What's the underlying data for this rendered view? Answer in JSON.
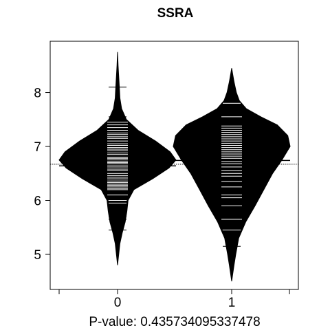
{
  "chart_data": {
    "type": "beanplot",
    "title": "SSRA",
    "xlabel": "P-value: 0.435734095337478",
    "ylabel": "",
    "categories": [
      "0",
      "1"
    ],
    "x_ticks": [
      "0",
      "1"
    ],
    "y_ticks": [
      5,
      6,
      7,
      8
    ],
    "ylim": [
      4.35,
      8.95
    ],
    "overall_mean_line": 6.67,
    "grid": false,
    "legend": "none",
    "beans": [
      {
        "category": "0",
        "mean": 6.64,
        "density": [
          [
            4.8,
            0.0
          ],
          [
            5.0,
            0.02
          ],
          [
            5.2,
            0.04
          ],
          [
            5.4,
            0.08
          ],
          [
            5.6,
            0.13
          ],
          [
            5.8,
            0.16
          ],
          [
            6.0,
            0.18
          ],
          [
            6.2,
            0.28
          ],
          [
            6.4,
            0.6
          ],
          [
            6.6,
            0.88
          ],
          [
            6.75,
            1.0
          ],
          [
            6.9,
            0.9
          ],
          [
            7.1,
            0.65
          ],
          [
            7.3,
            0.35
          ],
          [
            7.5,
            0.15
          ],
          [
            7.7,
            0.07
          ],
          [
            7.9,
            0.04
          ],
          [
            8.1,
            0.03
          ],
          [
            8.3,
            0.02
          ],
          [
            8.5,
            0.01
          ],
          [
            8.75,
            0.0
          ]
        ],
        "observations": [
          5.45,
          5.65,
          5.7,
          5.8,
          5.95,
          6.0,
          6.1,
          6.2,
          6.22,
          6.25,
          6.28,
          6.3,
          6.33,
          6.36,
          6.4,
          6.43,
          6.46,
          6.5,
          6.55,
          6.58,
          6.62,
          6.65,
          6.68,
          6.7,
          6.72,
          6.75,
          6.78,
          6.8,
          6.85,
          6.88,
          6.92,
          6.95,
          6.98,
          7.02,
          7.05,
          7.1,
          7.15,
          7.18,
          7.22,
          7.25,
          7.3,
          7.35,
          7.4,
          7.45,
          7.55,
          8.1
        ]
      },
      {
        "category": "1",
        "mean": 6.74,
        "density": [
          [
            4.5,
            0.0
          ],
          [
            4.8,
            0.04
          ],
          [
            5.0,
            0.07
          ],
          [
            5.3,
            0.12
          ],
          [
            5.6,
            0.24
          ],
          [
            5.9,
            0.4
          ],
          [
            6.2,
            0.55
          ],
          [
            6.5,
            0.7
          ],
          [
            6.75,
            0.86
          ],
          [
            7.0,
            1.0
          ],
          [
            7.2,
            0.96
          ],
          [
            7.4,
            0.78
          ],
          [
            7.55,
            0.5
          ],
          [
            7.7,
            0.25
          ],
          [
            7.85,
            0.13
          ],
          [
            8.0,
            0.08
          ],
          [
            8.2,
            0.04
          ],
          [
            8.45,
            0.0
          ]
        ],
        "observations": [
          5.15,
          5.45,
          5.65,
          5.9,
          6.05,
          6.1,
          6.25,
          6.35,
          6.45,
          6.5,
          6.55,
          6.62,
          6.68,
          6.72,
          6.78,
          6.82,
          6.86,
          6.9,
          6.94,
          6.98,
          7.02,
          7.06,
          7.1,
          7.14,
          7.18,
          7.22,
          7.26,
          7.3,
          7.34,
          7.38,
          7.55,
          7.8
        ]
      }
    ]
  }
}
